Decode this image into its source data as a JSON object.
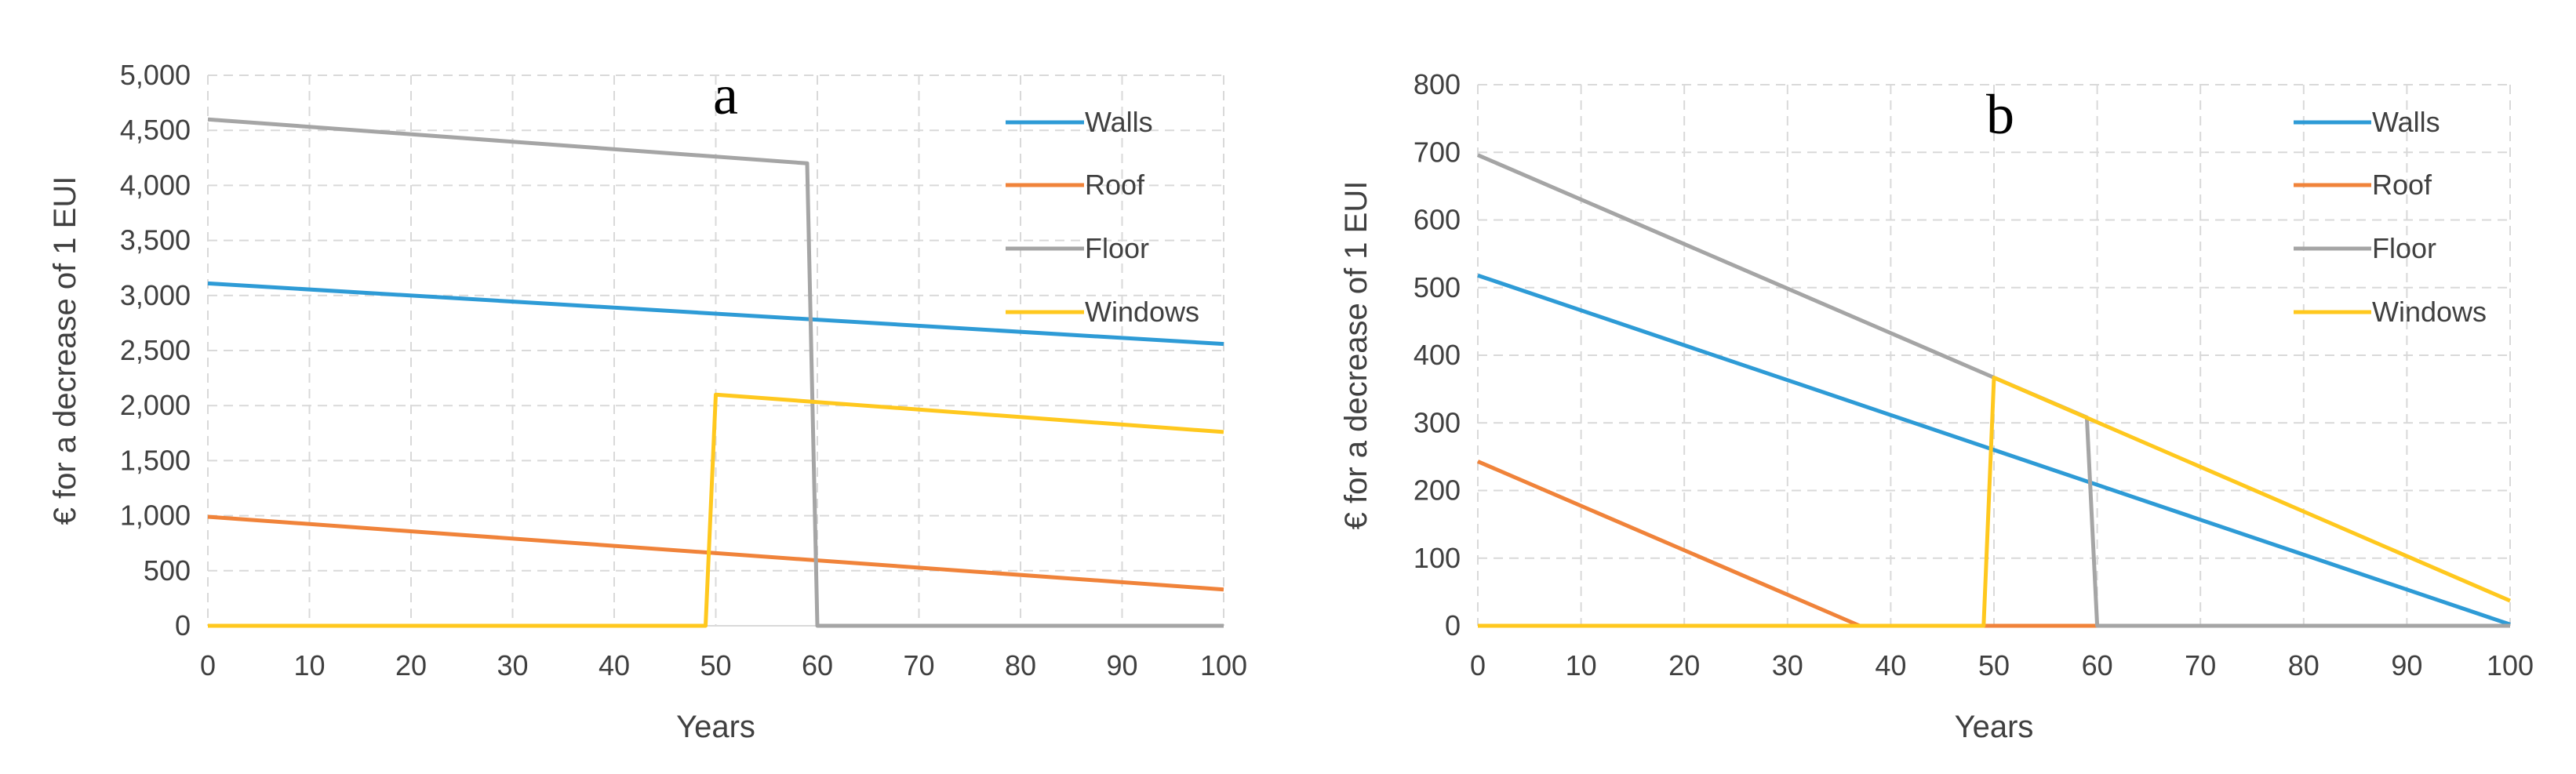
{
  "chart_data": [
    {
      "type": "line",
      "panel_label": "a",
      "title": "",
      "xlabel": "Years",
      "ylabel": "€ for a decrease of 1 EUI",
      "xlim": [
        0,
        100
      ],
      "ylim": [
        0,
        5000
      ],
      "xticks": [
        0,
        10,
        20,
        30,
        40,
        50,
        60,
        70,
        80,
        90,
        100
      ],
      "xtick_labels": [
        "0",
        "10",
        "20",
        "30",
        "40",
        "50",
        "60",
        "70",
        "80",
        "90",
        "100"
      ],
      "yticks": [
        0,
        500,
        1000,
        1500,
        2000,
        2500,
        3000,
        3500,
        4000,
        4500,
        5000
      ],
      "ytick_labels": [
        "0",
        "500",
        "1,000",
        "1,500",
        "2,000",
        "2,500",
        "3,000",
        "3,500",
        "4,000",
        "4,500",
        "5,000"
      ],
      "grid": true,
      "legend_position": "top-right",
      "series": [
        {
          "name": "Walls",
          "color": "#2E9BD6",
          "points": [
            [
              0,
              3110
            ],
            [
              100,
              2560
            ]
          ]
        },
        {
          "name": "Roof",
          "color": "#F0833A",
          "points": [
            [
              0,
              990
            ],
            [
              100,
              330
            ]
          ]
        },
        {
          "name": "Floor",
          "color": "#A5A5A5",
          "points": [
            [
              0,
              4600
            ],
            [
              59,
              4200
            ],
            [
              60,
              0
            ],
            [
              100,
              0
            ]
          ]
        },
        {
          "name": "Windows",
          "color": "#FFC81E",
          "points": [
            [
              0,
              0
            ],
            [
              49,
              0
            ],
            [
              50,
              2100
            ],
            [
              100,
              1760
            ]
          ]
        }
      ]
    },
    {
      "type": "line",
      "panel_label": "b",
      "title": "",
      "xlabel": "Years",
      "ylabel": "€ for a decrease of 1 EUI",
      "xlim": [
        0,
        100
      ],
      "ylim": [
        0,
        800
      ],
      "xticks": [
        0,
        10,
        20,
        30,
        40,
        50,
        60,
        70,
        80,
        90,
        100
      ],
      "xtick_labels": [
        "0",
        "10",
        "20",
        "30",
        "40",
        "50",
        "60",
        "70",
        "80",
        "90",
        "100"
      ],
      "yticks": [
        0,
        100,
        200,
        300,
        400,
        500,
        600,
        700,
        800
      ],
      "ytick_labels": [
        "0",
        "100",
        "200",
        "300",
        "400",
        "500",
        "600",
        "700",
        "800"
      ],
      "grid": true,
      "legend_position": "top-right",
      "series": [
        {
          "name": "Walls",
          "color": "#2E9BD6",
          "points": [
            [
              0,
              518
            ],
            [
              100,
              2
            ]
          ]
        },
        {
          "name": "Roof",
          "color": "#F0833A",
          "points": [
            [
              0,
              243
            ],
            [
              37,
              0
            ],
            [
              100,
              0
            ]
          ]
        },
        {
          "name": "Floor",
          "color": "#A5A5A5",
          "points": [
            [
              0,
              696
            ],
            [
              50,
              367
            ],
            [
              59,
              308
            ],
            [
              60,
              0
            ],
            [
              100,
              0
            ]
          ]
        },
        {
          "name": "Windows",
          "color": "#FFC81E",
          "points": [
            [
              0,
              0
            ],
            [
              49,
              0
            ],
            [
              50,
              367
            ],
            [
              100,
              37
            ]
          ]
        }
      ]
    }
  ]
}
